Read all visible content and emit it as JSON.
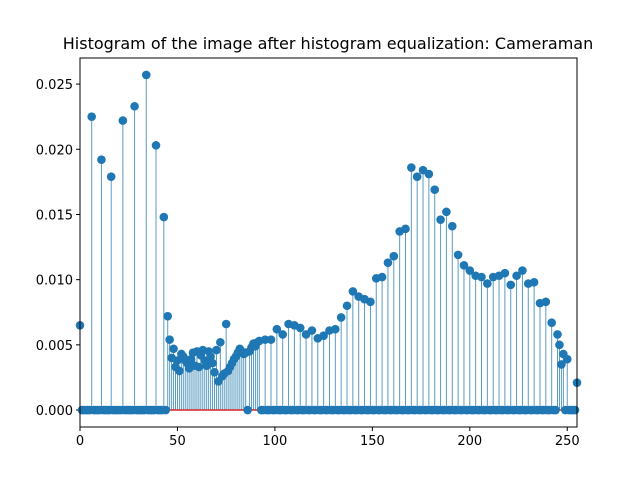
{
  "chart_data": {
    "type": "stem",
    "title": "Histogram of the image after histogram equalization: Cameraman",
    "xlim": [
      0,
      255
    ],
    "ylim": [
      -0.0013,
      0.027
    ],
    "xticks": [
      0,
      50,
      100,
      150,
      200,
      250
    ],
    "yticks": [
      {
        "value": 0,
        "label": "0.000"
      },
      {
        "value": 0.005,
        "label": "0.005"
      },
      {
        "value": 0.01,
        "label": "0.010"
      },
      {
        "value": 0.015,
        "label": "0.015"
      },
      {
        "value": 0.02,
        "label": "0.020"
      },
      {
        "value": 0.025,
        "label": "0.025"
      }
    ],
    "color": "#1f77b4",
    "stem_color": "#5a9bbf",
    "baseline_color": "#d62728",
    "values": [
      0.0065,
      0,
      0,
      0,
      0,
      0,
      0.0225,
      0,
      0,
      0,
      0,
      0.0192,
      0,
      0,
      0,
      0,
      0.0179,
      0,
      0,
      0,
      0,
      0,
      0.0222,
      0,
      0,
      0,
      0,
      0,
      0.0233,
      0,
      0,
      0,
      0,
      0,
      0.0257,
      0,
      0,
      0,
      0,
      0.0203,
      0,
      0,
      0,
      0.0148,
      0,
      0.0072,
      0.0054,
      0.004,
      0.0047,
      0.0033,
      0.0038,
      0.003,
      0.0043,
      0.0041,
      0.0038,
      0.0036,
      0.0032,
      0.0039,
      0.0044,
      0.0034,
      0.0045,
      0.0033,
      0.0042,
      0.0046,
      0.0038,
      0.0034,
      0.0045,
      0.0041,
      0.0036,
      0.0029,
      0.0046,
      0.0022,
      0.0052,
      0.0026,
      0.0028,
      0.0066,
      0.003,
      0.0033,
      0.0036,
      0.0039,
      0.0041,
      0.0044,
      0.0047,
      0.0045,
      0.0043,
      0.0044,
      0,
      0.0045,
      0.0048,
      0.0051,
      0.0049,
      0.0052,
      0.0053,
      0,
      0,
      0.0054,
      0,
      0,
      0.0054,
      0,
      0,
      0.0062,
      0,
      0,
      0.0058,
      0,
      0,
      0.0066,
      0,
      0,
      0.0065,
      0,
      0,
      0.0063,
      0,
      0,
      0.0058,
      0,
      0,
      0.0061,
      0,
      0,
      0.0055,
      0,
      0,
      0.0057,
      0,
      0,
      0.0061,
      0,
      0,
      0.0062,
      0,
      0,
      0.0071,
      0,
      0,
      0.008,
      0,
      0,
      0.0091,
      0,
      0,
      0.0087,
      0,
      0,
      0.0085,
      0,
      0,
      0.0083,
      0,
      0,
      0.0101,
      0,
      0,
      0.0102,
      0,
      0,
      0.0113,
      0,
      0,
      0.0118,
      0,
      0,
      0.0137,
      0,
      0,
      0.0139,
      0,
      0,
      0.0186,
      0,
      0,
      0.0179,
      0,
      0,
      0.0184,
      0,
      0,
      0.0181,
      0,
      0,
      0.0169,
      0,
      0,
      0.0146,
      0,
      0,
      0.0152,
      0,
      0,
      0.0141,
      0,
      0,
      0.0119,
      0,
      0,
      0.0111,
      0,
      0,
      0.0107,
      0,
      0,
      0.0103,
      0,
      0,
      0.0102,
      0,
      0,
      0.0097,
      0,
      0,
      0.0102,
      0,
      0,
      0.0103,
      0,
      0,
      0.0105,
      0,
      0,
      0.0096,
      0,
      0,
      0.0103,
      0,
      0,
      0.0107,
      0,
      0,
      0.0097,
      0,
      0,
      0.0098,
      0,
      0,
      0.0082,
      0,
      0,
      0.0083,
      0,
      0,
      0.0067,
      0,
      0,
      0.0058,
      0.005,
      0.0035,
      0.0043,
      0,
      0.0039,
      0,
      0,
      0,
      0,
      0.0021
    ]
  }
}
